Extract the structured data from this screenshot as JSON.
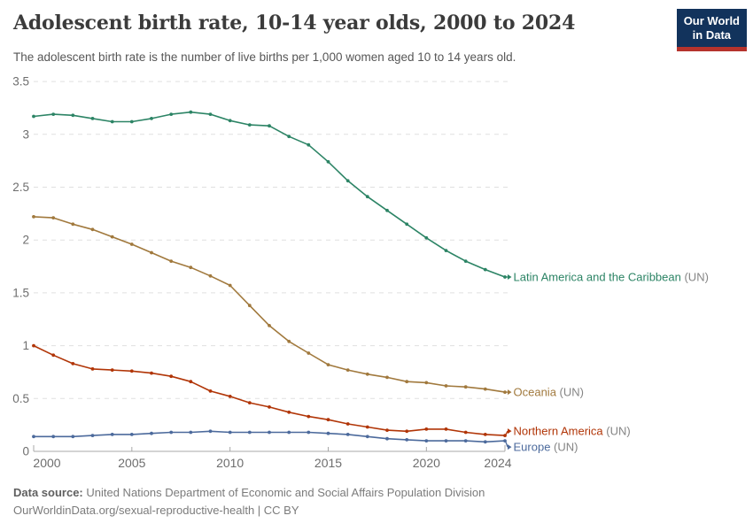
{
  "header": {
    "title": "Adolescent birth rate, 10-14 year olds, 2000 to 2024",
    "subtitle": "The adolescent birth rate is the number of live births per 1,000 women aged 10 to 14 years old.",
    "logo": {
      "line1": "Our World",
      "line2": "in Data",
      "bg_color": "#12335C",
      "bar_color": "#B5332C"
    }
  },
  "footer": {
    "source_label": "Data source:",
    "source_text": " United Nations Department of Economic and Social Affairs Population Division",
    "license_text": "OurWorldinData.org/sexual-reproductive-health | CC BY"
  },
  "chart_data": {
    "type": "line",
    "title": "Adolescent birth rate, 10-14 year olds, 2000 to 2024",
    "subtitle": "The adolescent birth rate is the number of live births per 1,000 women aged 10 to 14 years old.",
    "xlabel": "",
    "ylabel": "",
    "x_range": [
      2000,
      2024
    ],
    "y_range": [
      0,
      3.5
    ],
    "grid": "horizontal-dashed",
    "legend_position": "end-of-line-labels",
    "suffix_color": "#858585",
    "axis_text_color": "#6e6e6e",
    "gridline_color": "#e0e0e0",
    "axis_line_color": "#a8a8a8",
    "x": [
      2000,
      2001,
      2002,
      2003,
      2004,
      2005,
      2006,
      2007,
      2008,
      2009,
      2010,
      2011,
      2012,
      2013,
      2014,
      2015,
      2016,
      2017,
      2018,
      2019,
      2020,
      2021,
      2022,
      2023,
      2024
    ],
    "x_ticks": [
      {
        "year": 2000,
        "label": "2000"
      },
      {
        "year": 2005,
        "label": "2005"
      },
      {
        "year": 2010,
        "label": "2010"
      },
      {
        "year": 2015,
        "label": "2015"
      },
      {
        "year": 2020,
        "label": "2020"
      },
      {
        "year": 2024,
        "label": "2024"
      }
    ],
    "y_ticks": [
      {
        "value": 0,
        "label": "0"
      },
      {
        "value": 0.5,
        "label": "0.5"
      },
      {
        "value": 1,
        "label": "1"
      },
      {
        "value": 1.5,
        "label": "1.5"
      },
      {
        "value": 2,
        "label": "2"
      },
      {
        "value": 2.5,
        "label": "2.5"
      },
      {
        "value": 3,
        "label": "3"
      },
      {
        "value": 3.5,
        "label": "3.5"
      }
    ],
    "series": [
      {
        "id": "latin-america-and-the-caribbean",
        "name": "Latin America and the Caribbean",
        "suffix": " (UN)",
        "color": "#2C8465",
        "label_dy": 0,
        "values": [
          3.17,
          3.19,
          3.18,
          3.15,
          3.12,
          3.12,
          3.15,
          3.19,
          3.21,
          3.19,
          3.13,
          3.09,
          3.08,
          2.98,
          2.9,
          2.74,
          2.56,
          2.41,
          2.28,
          2.15,
          2.02,
          1.9,
          1.8,
          1.72,
          1.65
        ]
      },
      {
        "id": "oceania",
        "name": "Oceania",
        "suffix": " (UN)",
        "color": "#A1793D",
        "label_dy": 0,
        "values": [
          2.22,
          2.21,
          2.15,
          2.1,
          2.03,
          1.96,
          1.88,
          1.8,
          1.74,
          1.66,
          1.57,
          1.38,
          1.19,
          1.04,
          0.93,
          0.82,
          0.77,
          0.73,
          0.7,
          0.66,
          0.65,
          0.62,
          0.61,
          0.59,
          0.56
        ]
      },
      {
        "id": "northern-america",
        "name": "Northern America",
        "suffix": " (UN)",
        "color": "#B13507",
        "label_dy": -5,
        "values": [
          1.0,
          0.91,
          0.83,
          0.78,
          0.77,
          0.76,
          0.74,
          0.71,
          0.66,
          0.57,
          0.52,
          0.46,
          0.42,
          0.37,
          0.33,
          0.3,
          0.26,
          0.23,
          0.2,
          0.19,
          0.21,
          0.21,
          0.18,
          0.16,
          0.15
        ]
      },
      {
        "id": "europe",
        "name": "Europe",
        "suffix": " (UN)",
        "color": "#4C6A9C",
        "label_dy": 7,
        "values": [
          0.14,
          0.14,
          0.14,
          0.15,
          0.16,
          0.16,
          0.17,
          0.18,
          0.18,
          0.19,
          0.18,
          0.18,
          0.18,
          0.18,
          0.18,
          0.17,
          0.16,
          0.14,
          0.12,
          0.11,
          0.1,
          0.1,
          0.1,
          0.09,
          0.1
        ]
      }
    ]
  }
}
